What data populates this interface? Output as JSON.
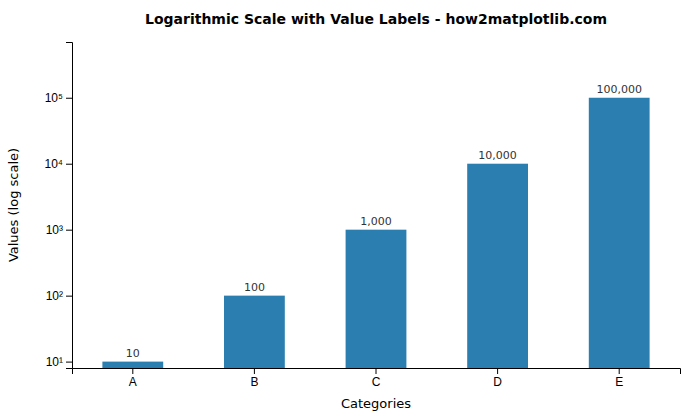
{
  "chart_data": {
    "type": "bar",
    "title": "Logarithmic Scale with Value Labels - how2matplotlib.com",
    "xlabel": "Categories",
    "ylabel": "Values (log scale)",
    "categories": [
      "A",
      "B",
      "C",
      "D",
      "E"
    ],
    "values": [
      10,
      100,
      1000,
      10000,
      100000
    ],
    "value_labels": [
      "10",
      "100",
      "1,000",
      "10,000",
      "100,000"
    ],
    "data_labels": true,
    "color": "#2b7eb0",
    "log": "y",
    "ylim": [
      8,
      700000
    ],
    "yticks": [
      {
        "value": 10,
        "label": "10¹"
      },
      {
        "value": 100,
        "label": "10²"
      },
      {
        "value": 1000,
        "label": "10³"
      },
      {
        "value": 10000,
        "label": "10⁴"
      },
      {
        "value": 100000,
        "label": "10⁵"
      }
    ]
  }
}
